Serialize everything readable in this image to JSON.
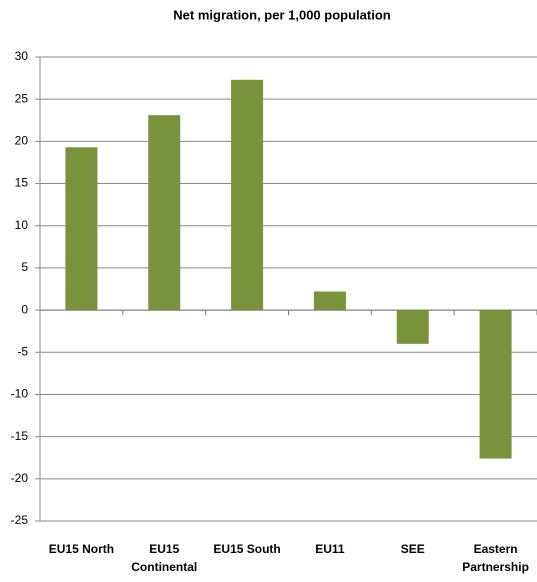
{
  "chart_data": {
    "type": "bar",
    "title": "Net migration, per 1,000 population",
    "categories": [
      "EU15 North",
      "EU15 Continental",
      "EU15 South",
      "EU11",
      "SEE",
      "Eastern Partnership"
    ],
    "values": [
      19.3,
      23.1,
      27.3,
      2.2,
      -4.0,
      -17.6
    ],
    "color": "#77933c",
    "ylim": [
      -25,
      30
    ],
    "yticks": [
      -25,
      -20,
      -15,
      -10,
      -5,
      0,
      5,
      10,
      15,
      20,
      25,
      30
    ],
    "grid": true
  }
}
